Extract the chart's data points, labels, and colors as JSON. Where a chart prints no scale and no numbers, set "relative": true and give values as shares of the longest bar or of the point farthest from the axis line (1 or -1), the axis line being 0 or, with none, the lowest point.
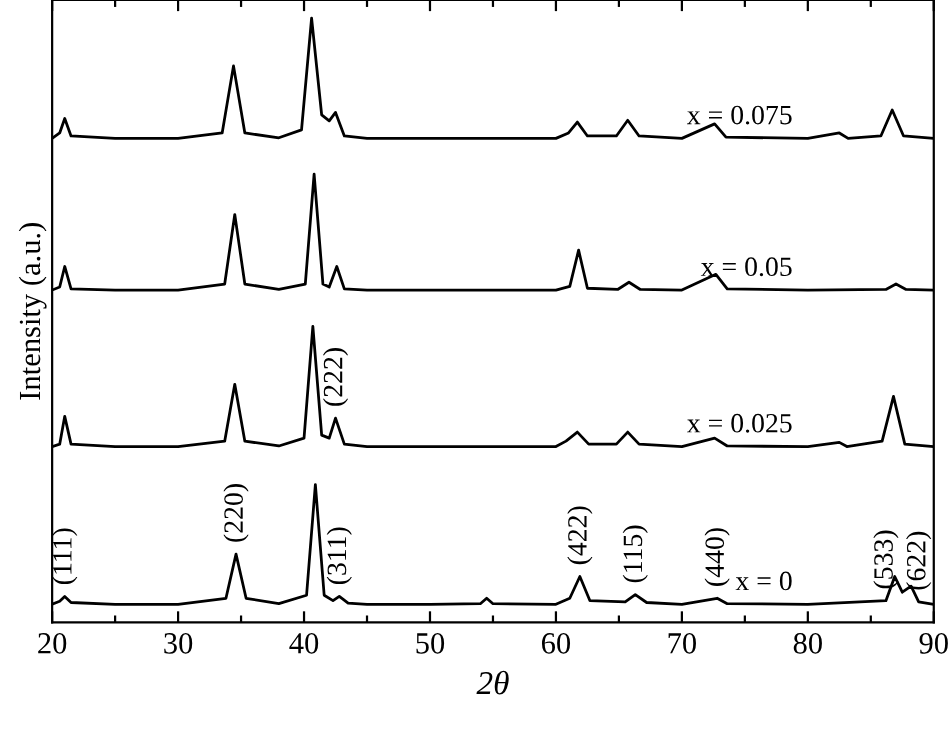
{
  "chart_data": {
    "type": "line",
    "relative": true,
    "xlabel": "2θ",
    "ylabel": "Intensity (a.u.)",
    "xlim": [
      20,
      90
    ],
    "xticks": [
      20,
      {
        "value": 25,
        "label": null
      },
      30,
      {
        "value": 35,
        "label": null
      },
      40,
      {
        "value": 45,
        "label": null
      },
      50,
      {
        "value": 55,
        "label": null
      },
      60,
      {
        "value": 65,
        "label": null
      },
      70,
      {
        "value": 75,
        "label": null
      },
      80,
      {
        "value": 85,
        "label": null
      },
      90
    ],
    "grid": false,
    "legend": false,
    "marker": "none",
    "line_style": "solid",
    "series": [
      {
        "name": "x = 0.075",
        "color": "#000000",
        "x": [
          20,
          20.6,
          21,
          21.5,
          25,
          30,
          33.5,
          34.4,
          35.3,
          38,
          39.8,
          40.6,
          41.4,
          42,
          42.5,
          43.2,
          45,
          50,
          55,
          60,
          61,
          61.7,
          62.5,
          64.8,
          65.7,
          66.6,
          70,
          72.6,
          73.5,
          80,
          82.5,
          83.2,
          85.8,
          86.7,
          87.6,
          90
        ],
        "values": [
          0.801,
          0.81,
          0.834,
          0.805,
          0.801,
          0.801,
          0.81,
          0.921,
          0.81,
          0.802,
          0.815,
          1.0,
          0.84,
          0.83,
          0.844,
          0.805,
          0.801,
          0.801,
          0.801,
          0.801,
          0.81,
          0.828,
          0.805,
          0.805,
          0.831,
          0.805,
          0.801,
          0.825,
          0.803,
          0.801,
          0.81,
          0.801,
          0.805,
          0.848,
          0.805,
          0.801
        ]
      },
      {
        "name": "x = 0.05",
        "color": "#000000",
        "x": [
          20,
          20.6,
          21,
          21.5,
          25,
          30,
          33.7,
          34.5,
          35.3,
          38,
          40.1,
          40.8,
          41.5,
          42,
          42.6,
          43.2,
          45,
          50,
          55,
          60,
          61.1,
          61.8,
          62.5,
          64.9,
          65.8,
          66.7,
          70,
          72.7,
          73.6,
          80,
          86.2,
          87,
          87.8,
          90
        ],
        "values": [
          0.55,
          0.555,
          0.589,
          0.552,
          0.55,
          0.55,
          0.56,
          0.675,
          0.56,
          0.551,
          0.56,
          0.742,
          0.56,
          0.555,
          0.589,
          0.552,
          0.55,
          0.55,
          0.55,
          0.55,
          0.556,
          0.616,
          0.553,
          0.551,
          0.563,
          0.551,
          0.55,
          0.576,
          0.552,
          0.55,
          0.551,
          0.56,
          0.551,
          0.55
        ]
      },
      {
        "name": "x = 0.025",
        "color": "#000000",
        "x": [
          20,
          20.6,
          21,
          21.5,
          25,
          30,
          33.7,
          34.5,
          35.3,
          38,
          40,
          40.7,
          41.4,
          42,
          42.5,
          43.2,
          45,
          50,
          55,
          60,
          60.8,
          61.7,
          62.6,
          64.8,
          65.7,
          66.6,
          70,
          72.6,
          73.6,
          80,
          82.5,
          83.1,
          85.9,
          86.8,
          87.7,
          90
        ],
        "values": [
          0.291,
          0.295,
          0.341,
          0.295,
          0.291,
          0.291,
          0.3,
          0.394,
          0.3,
          0.292,
          0.305,
          0.49,
          0.31,
          0.305,
          0.338,
          0.295,
          0.291,
          0.291,
          0.291,
          0.291,
          0.3,
          0.315,
          0.295,
          0.295,
          0.315,
          0.295,
          0.291,
          0.305,
          0.292,
          0.291,
          0.298,
          0.291,
          0.3,
          0.374,
          0.295,
          0.291
        ]
      },
      {
        "name": "x = 0",
        "color": "#000000",
        "x": [
          20,
          20.6,
          21,
          21.5,
          25,
          30,
          33.8,
          34.6,
          35.4,
          38,
          40.2,
          40.9,
          41.6,
          42.3,
          42.8,
          43.5,
          45,
          50,
          54,
          54.5,
          55,
          60,
          61.1,
          61.9,
          62.7,
          65.5,
          66.3,
          67.2,
          70,
          72.8,
          73.6,
          80,
          86.2,
          86.9,
          87.5,
          88.2,
          88.8,
          90
        ],
        "values": [
          0.03,
          0.035,
          0.043,
          0.033,
          0.03,
          0.03,
          0.04,
          0.113,
          0.04,
          0.031,
          0.045,
          0.228,
          0.045,
          0.036,
          0.043,
          0.032,
          0.03,
          0.03,
          0.031,
          0.04,
          0.031,
          0.03,
          0.04,
          0.076,
          0.036,
          0.034,
          0.046,
          0.033,
          0.03,
          0.04,
          0.031,
          0.03,
          0.036,
          0.076,
          0.05,
          0.06,
          0.034,
          0.03
        ]
      }
    ],
    "annotations": [
      {
        "text": "(111)",
        "x": 21,
        "y": 0.043
      },
      {
        "text": "(220)",
        "x": 34.6,
        "y": 0.113
      },
      {
        "text": "(311)",
        "x": 42.8,
        "y": 0.043
      },
      {
        "text": "(222)",
        "x": 42.5,
        "y": 0.338
      },
      {
        "text": "(422)",
        "x": 61.9,
        "y": 0.076
      },
      {
        "text": "(115)",
        "x": 66.3,
        "y": 0.046
      },
      {
        "text": "(440)",
        "x": 72.8,
        "y": 0.04
      },
      {
        "text": "(533)",
        "x": 86.2,
        "y": 0.036
      },
      {
        "text": "(622)",
        "x": 88.8,
        "y": 0.034
      }
    ]
  }
}
